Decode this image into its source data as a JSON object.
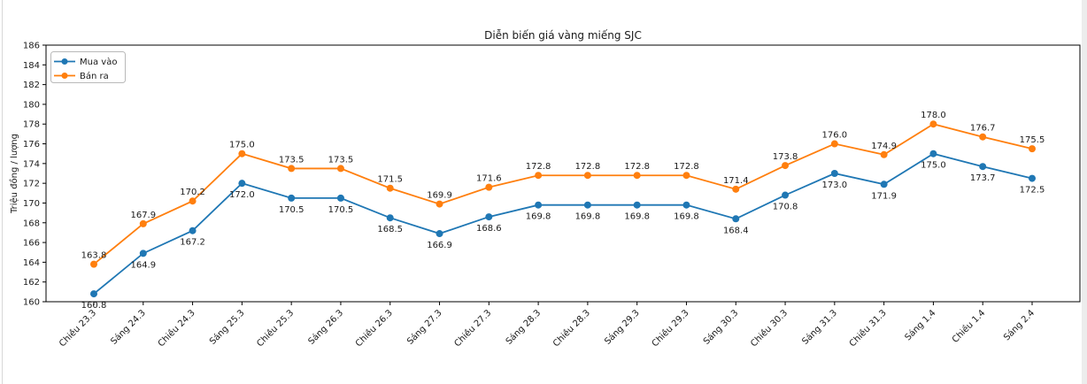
{
  "window": {
    "background": "#ffffff",
    "left_edge_color": "#d8d8d8",
    "right_band_color": "#ececec"
  },
  "chart_data": {
    "type": "line",
    "title": "Diễn biến giá vàng miếng SJC",
    "xlabel": "",
    "ylabel": "Triệu đồng / lượng",
    "ylim": [
      160,
      186
    ],
    "ytick_step": 2,
    "grid": false,
    "legend_position": "upper-left",
    "axis_color": "#000000",
    "text_color": "#1a1a1a",
    "marker": "circle",
    "categories": [
      "Chiều 23.3",
      "Sáng 24.3",
      "Chiều 24.3",
      "Sáng 25.3",
      "Chiều 25.3",
      "Sáng 26.3",
      "Chiều 26.3",
      "Sáng 27.3",
      "Chiều 27.3",
      "Sáng 28.3",
      "Chiều 28.3",
      "Sáng 29.3",
      "Chiều 29.3",
      "Sáng 30.3",
      "Chiều 30.3",
      "Sáng 31.3",
      "Chiều 31.3",
      "Sáng 1.4",
      "Chiều 1.4",
      "Sáng 2.4"
    ],
    "series": [
      {
        "name": "Mua vào",
        "color": "#1f77b4",
        "label_position": "below",
        "values": [
          160.8,
          164.9,
          167.2,
          172.0,
          170.5,
          170.5,
          168.5,
          166.9,
          168.6,
          169.8,
          169.8,
          169.8,
          169.8,
          168.4,
          170.8,
          173.0,
          171.9,
          175.0,
          173.7,
          172.5
        ]
      },
      {
        "name": "Bán ra",
        "color": "#ff7f0e",
        "label_position": "above",
        "values": [
          163.8,
          167.9,
          170.2,
          175.0,
          173.5,
          173.5,
          171.5,
          169.9,
          171.6,
          172.8,
          172.8,
          172.8,
          172.8,
          171.4,
          173.8,
          176.0,
          174.9,
          178.0,
          176.7,
          175.5
        ]
      }
    ]
  }
}
